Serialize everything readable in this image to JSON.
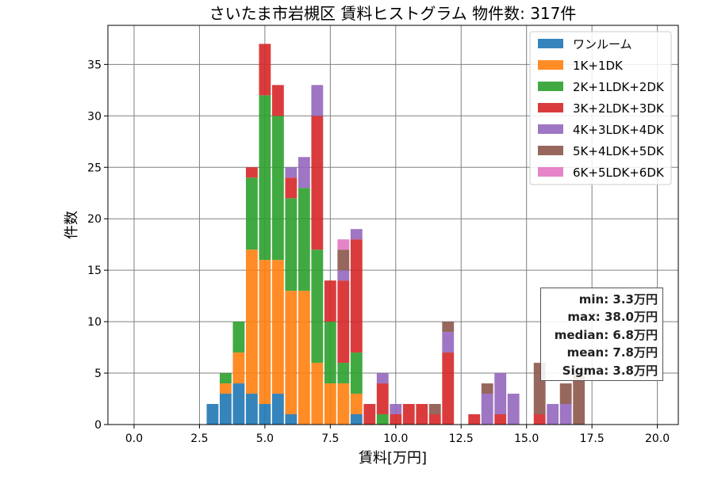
{
  "chart_data": {
    "type": "bar",
    "stacked": true,
    "title": "さいたま市岩槻区 賃料ヒストグラム 物件数: 317件",
    "xlabel": "賃料[万円]",
    "ylabel": "件数",
    "xlim": [
      -1.0,
      20.8
    ],
    "ylim": [
      0,
      38.8
    ],
    "xticks": [
      "0.0",
      "2.5",
      "5.0",
      "7.5",
      "10.0",
      "12.5",
      "15.0",
      "17.5",
      "20.0"
    ],
    "yticks": [
      "0",
      "5",
      "10",
      "15",
      "20",
      "25",
      "30",
      "35"
    ],
    "grid": true,
    "legend_position": "top-right",
    "bin_width": 0.5,
    "x": [
      3.0,
      3.5,
      4.0,
      4.5,
      5.0,
      5.5,
      6.0,
      6.5,
      7.0,
      7.5,
      8.0,
      8.5,
      9.0,
      9.5,
      10.0,
      10.5,
      11.0,
      11.5,
      12.0,
      12.5,
      13.0,
      13.5,
      14.0,
      14.5,
      15.0,
      15.5,
      16.0,
      16.5,
      17.0
    ],
    "series": [
      {
        "name": "ワンルーム",
        "color": "#1f77b4",
        "values": [
          2,
          3,
          4,
          3,
          2,
          3,
          1,
          0,
          0,
          0,
          0,
          1,
          0,
          0,
          0,
          0,
          0,
          0,
          0,
          0,
          0,
          0,
          0,
          0,
          0,
          0,
          0,
          0,
          0
        ]
      },
      {
        "name": "1K+1DK",
        "color": "#ff7f0e",
        "values": [
          0,
          1,
          3,
          14,
          14,
          13,
          12,
          13,
          6,
          4,
          4,
          2,
          0,
          0,
          0,
          0,
          0,
          0,
          0,
          0,
          0,
          0,
          0,
          0,
          0,
          0,
          0,
          0,
          0
        ]
      },
      {
        "name": "2K+1LDK+2DK",
        "color": "#2ca02c",
        "values": [
          0,
          1,
          3,
          7,
          16,
          14,
          9,
          10,
          11,
          6,
          2,
          4,
          0,
          1,
          0,
          0,
          0,
          0,
          0,
          0,
          0,
          0,
          0,
          0,
          0,
          0,
          0,
          0,
          0
        ]
      },
      {
        "name": "3K+2LDK+3DK",
        "color": "#d62728",
        "values": [
          0,
          0,
          0,
          1,
          5,
          3,
          2,
          0,
          13,
          4,
          8,
          11,
          2,
          3,
          1,
          2,
          2,
          1,
          7,
          0,
          1,
          0,
          1,
          0,
          0,
          1,
          0,
          0,
          0
        ]
      },
      {
        "name": "4K+3LDK+4DK",
        "color": "#9467bd",
        "values": [
          0,
          0,
          0,
          0,
          0,
          0,
          1,
          3,
          3,
          0,
          1,
          1,
          0,
          1,
          1,
          0,
          0,
          0,
          2,
          0,
          0,
          3,
          4,
          3,
          0,
          0,
          2,
          2,
          0
        ]
      },
      {
        "name": "5K+4LDK+5DK",
        "color": "#8c564b",
        "values": [
          0,
          0,
          0,
          0,
          0,
          0,
          0,
          0,
          0,
          0,
          2,
          0,
          0,
          0,
          0,
          0,
          0,
          1,
          1,
          0,
          0,
          1,
          0,
          0,
          0,
          5,
          0,
          2,
          5
        ]
      },
      {
        "name": "6K+5LDK+6DK",
        "color": "#e377c2",
        "values": [
          0,
          0,
          0,
          0,
          0,
          0,
          0,
          0,
          0,
          0,
          1,
          0,
          0,
          0,
          0,
          0,
          0,
          0,
          0,
          0,
          0,
          0,
          0,
          0,
          0,
          0,
          0,
          0,
          0
        ]
      }
    ],
    "stats": [
      "min: 3.3万円",
      "max: 38.0万円",
      "median: 6.8万円",
      "mean: 7.8万円",
      "Sigma: 3.8万円"
    ]
  }
}
